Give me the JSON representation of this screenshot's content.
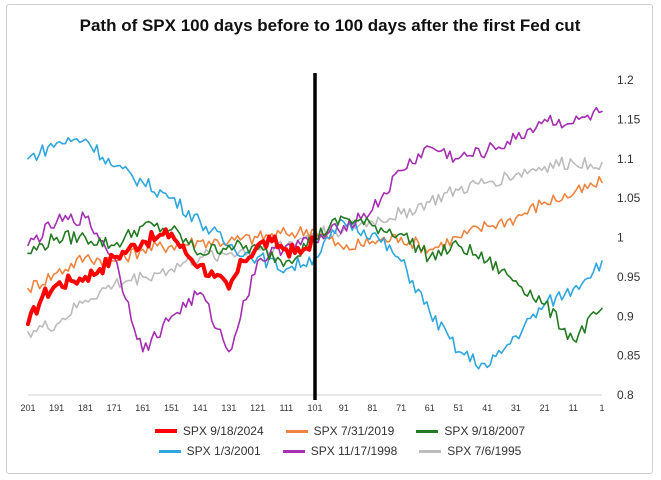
{
  "chart_data": {
    "type": "line",
    "title": "Path of SPX 100 days before to 100 days after the first Fed cut",
    "xlabel": "",
    "ylabel": "",
    "ylim": [
      0.8,
      1.2
    ],
    "y_ticks": [
      "1.2",
      "1.15",
      "1.1",
      "1.05",
      "1",
      "0.95",
      "0.9",
      "0.85",
      "0.8"
    ],
    "x_ticks": [
      "201",
      "191",
      "181",
      "171",
      "161",
      "151",
      "141",
      "131",
      "121",
      "111",
      "101",
      "91",
      "81",
      "71",
      "61",
      "51",
      "41",
      "31",
      "21",
      "11",
      "1"
    ],
    "xlim": [
      201,
      1
    ],
    "cut_day": 101,
    "series": [
      {
        "name": "SPX 9/18/2024",
        "color": "#ff0000",
        "width": 4,
        "x": [
          201,
          196,
          191,
          186,
          181,
          176,
          171,
          166,
          161,
          156,
          151,
          146,
          141,
          136,
          131,
          126,
          121,
          116,
          111,
          106,
          101
        ],
        "values": [
          0.89,
          0.925,
          0.94,
          0.945,
          0.95,
          0.96,
          0.975,
          0.985,
          0.995,
          1.0,
          1.005,
          0.98,
          0.965,
          0.95,
          0.935,
          0.97,
          0.99,
          0.995,
          0.985,
          0.98,
          1.0
        ]
      },
      {
        "name": "SPX 7/31/2019",
        "color": "#ef8441",
        "width": 1.6,
        "x": [
          201,
          191,
          181,
          171,
          161,
          151,
          141,
          131,
          121,
          111,
          101,
          91,
          81,
          71,
          61,
          51,
          41,
          31,
          21,
          11,
          1
        ],
        "values": [
          0.935,
          0.955,
          0.975,
          0.97,
          0.985,
          0.99,
          0.995,
          0.995,
          1.0,
          1.005,
          1.01,
          0.985,
          0.995,
          1.0,
          0.985,
          1.0,
          1.015,
          1.025,
          1.045,
          1.055,
          1.07
        ]
      },
      {
        "name": "SPX 9/18/2007",
        "color": "#237a22",
        "width": 1.6,
        "x": [
          201,
          191,
          181,
          171,
          161,
          151,
          141,
          131,
          121,
          111,
          101,
          91,
          81,
          71,
          61,
          51,
          41,
          31,
          21,
          11,
          1
        ],
        "values": [
          0.98,
          1.0,
          1.0,
          0.99,
          1.015,
          1.01,
          0.98,
          0.99,
          0.985,
          0.97,
          1.0,
          1.025,
          1.015,
          1.005,
          0.975,
          0.99,
          0.97,
          0.945,
          0.915,
          0.87,
          0.91
        ]
      },
      {
        "name": "SPX 1/3/2001",
        "color": "#2fa6de",
        "width": 1.6,
        "x": [
          201,
          191,
          181,
          171,
          161,
          151,
          141,
          131,
          121,
          111,
          101,
          91,
          81,
          71,
          61,
          51,
          41,
          31,
          21,
          11,
          1
        ],
        "values": [
          1.1,
          1.12,
          1.125,
          1.09,
          1.07,
          1.05,
          1.02,
          0.99,
          0.975,
          0.96,
          0.975,
          1.02,
          1.005,
          0.97,
          0.905,
          0.855,
          0.835,
          0.875,
          0.915,
          0.935,
          0.97
        ]
      },
      {
        "name": "SPX 11/17/1998",
        "color": "#a42fb1",
        "width": 1.6,
        "x": [
          201,
          191,
          181,
          171,
          161,
          151,
          141,
          131,
          121,
          111,
          101,
          91,
          81,
          71,
          61,
          51,
          41,
          31,
          21,
          11,
          1
        ],
        "values": [
          0.99,
          1.02,
          1.025,
          0.975,
          0.855,
          0.9,
          0.93,
          0.855,
          0.97,
          0.99,
          0.995,
          1.015,
          1.035,
          1.085,
          1.115,
          1.1,
          1.11,
          1.125,
          1.15,
          1.145,
          1.16
        ]
      },
      {
        "name": "SPX 7/6/1995",
        "color": "#bcbcbc",
        "width": 1.6,
        "x": [
          201,
          191,
          181,
          171,
          161,
          151,
          141,
          131,
          121,
          111,
          101,
          91,
          81,
          71,
          61,
          51,
          41,
          31,
          21,
          11,
          1
        ],
        "values": [
          0.88,
          0.89,
          0.92,
          0.94,
          0.95,
          0.96,
          0.975,
          0.98,
          0.985,
          0.99,
          1.005,
          1.01,
          1.02,
          1.03,
          1.045,
          1.06,
          1.07,
          1.08,
          1.09,
          1.095,
          1.095
        ]
      }
    ],
    "legend_position": "bottom"
  }
}
